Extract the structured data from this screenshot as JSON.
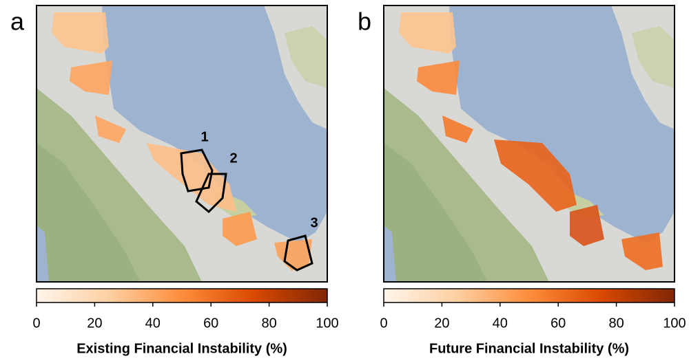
{
  "panels": [
    {
      "label": "a",
      "annotations": [
        "1",
        "2",
        "3"
      ],
      "colorbar": {
        "label": "Existing Financial Instability (%)",
        "lim": [
          0,
          100
        ],
        "ticks": [
          0,
          20,
          40,
          60,
          80,
          100
        ]
      }
    },
    {
      "label": "b",
      "colorbar": {
        "label": "Future Financial Instability (%)",
        "lim": [
          0,
          100
        ],
        "ticks": [
          0,
          20,
          40,
          60,
          80,
          100
        ]
      }
    }
  ]
}
